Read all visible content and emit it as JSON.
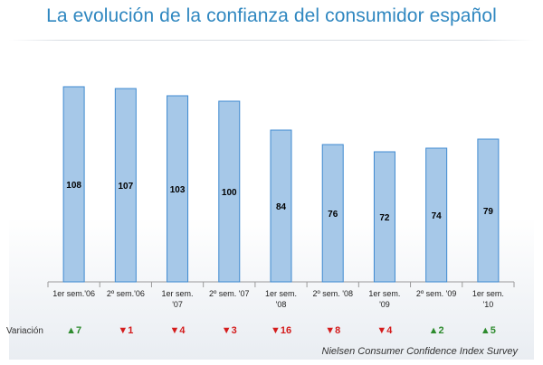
{
  "title": "La evolución de la confianza del consumidor español",
  "source": "Nielsen Consumer Confidence Index Survey",
  "variation_label": "Variación",
  "colors": {
    "title": "#2f87c0",
    "bar_fill": "#a6c8e8",
    "bar_stroke": "#3f8ad0",
    "up": "#2e8b2e",
    "down": "#d41c1c"
  },
  "chart_data": {
    "type": "bar",
    "title": "La evolución de la confianza del consumidor español",
    "categories": [
      [
        "1er sem.'06"
      ],
      [
        "2º sem.'06"
      ],
      [
        "1er sem.",
        "'07"
      ],
      [
        "2º sem. '07"
      ],
      [
        "1er sem.",
        "'08"
      ],
      [
        "2º sem. '08"
      ],
      [
        "1er sem.",
        "'09"
      ],
      [
        "2º sem. '09"
      ],
      [
        "1er sem.",
        "'10"
      ]
    ],
    "values": [
      108,
      107,
      103,
      100,
      84,
      76,
      72,
      74,
      79
    ],
    "data_labels": [
      "108",
      "107",
      "103",
      "100",
      "84",
      "76",
      "72",
      "74",
      "79"
    ],
    "variation": [
      {
        "dir": "up",
        "text": "▲7"
      },
      {
        "dir": "down",
        "text": "▼1"
      },
      {
        "dir": "down",
        "text": "▼4"
      },
      {
        "dir": "down",
        "text": "▼3"
      },
      {
        "dir": "down",
        "text": "▼16"
      },
      {
        "dir": "down",
        "text": "▼8"
      },
      {
        "dir": "down",
        "text": "▼4"
      },
      {
        "dir": "up",
        "text": "▲2"
      },
      {
        "dir": "up",
        "text": "▲5"
      }
    ],
    "xlabel": "",
    "ylabel": "",
    "ylim": [
      0,
      115
    ],
    "grid": false
  }
}
